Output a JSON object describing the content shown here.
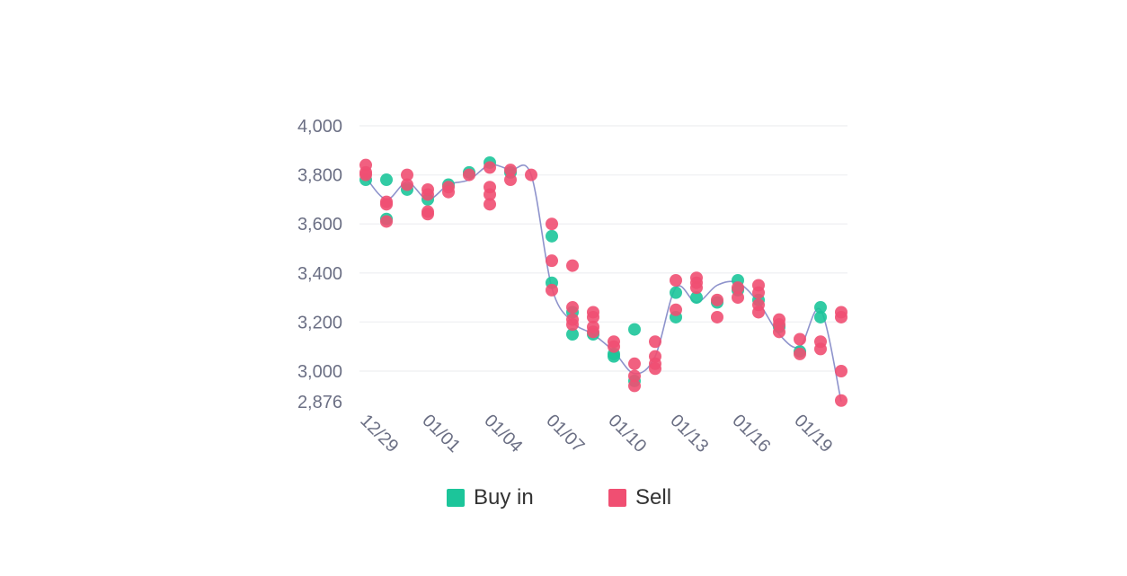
{
  "chart_data": {
    "type": "scatter",
    "title": "",
    "xlabel": "",
    "ylabel": "",
    "ylim": [
      2876,
      4000
    ],
    "y_ticks": [
      "4,000",
      "3,800",
      "3,600",
      "3,400",
      "3,200",
      "3,000",
      "2,876"
    ],
    "y_tick_values": [
      4000,
      3800,
      3600,
      3400,
      3200,
      3000,
      2876
    ],
    "x_ticks": [
      "12/29",
      "01/01",
      "01/04",
      "01/07",
      "01/10",
      "01/13",
      "01/16",
      "01/19"
    ],
    "x_tick_values": [
      "2022-12-29",
      "2023-01-01",
      "2023-01-04",
      "2023-01-07",
      "2023-01-10",
      "2023-01-13",
      "2023-01-16",
      "2023-01-19"
    ],
    "xlim": [
      "2022-12-29",
      "2023-01-20"
    ],
    "grid": true,
    "legend_position": "bottom",
    "colors": {
      "buy": "#1cc59a",
      "sell": "#f04f72",
      "line": "#8e93cc"
    },
    "line": [
      [
        "2022-12-29",
        3790
      ],
      [
        "2022-12-30",
        3700
      ],
      [
        "2022-12-31",
        3770
      ],
      [
        "2023-01-01",
        3700
      ],
      [
        "2023-01-02",
        3760
      ],
      [
        "2023-01-03",
        3780
      ],
      [
        "2023-01-04",
        3840
      ],
      [
        "2023-01-05",
        3820
      ],
      [
        "2023-01-06",
        3800
      ],
      [
        "2023-01-07",
        3340
      ],
      [
        "2023-01-08",
        3200
      ],
      [
        "2023-01-09",
        3150
      ],
      [
        "2023-01-10",
        3080
      ],
      [
        "2023-01-11",
        2990
      ],
      [
        "2023-01-12",
        3060
      ],
      [
        "2023-01-13",
        3340
      ],
      [
        "2023-01-14",
        3280
      ],
      [
        "2023-01-15",
        3350
      ],
      [
        "2023-01-16",
        3360
      ],
      [
        "2023-01-17",
        3280
      ],
      [
        "2023-01-18",
        3150
      ],
      [
        "2023-01-19",
        3100
      ],
      [
        "2023-01-20",
        3250
      ],
      [
        "2023-01-21",
        2876
      ]
    ],
    "series": [
      {
        "name": "Buy in",
        "points": [
          [
            "2022-12-29",
            3780
          ],
          [
            "2022-12-30",
            3620
          ],
          [
            "2022-12-30",
            3780
          ],
          [
            "2022-12-31",
            3740
          ],
          [
            "2023-01-01",
            3700
          ],
          [
            "2023-01-02",
            3760
          ],
          [
            "2023-01-03",
            3810
          ],
          [
            "2023-01-04",
            3850
          ],
          [
            "2023-01-05",
            3810
          ],
          [
            "2023-01-07",
            3550
          ],
          [
            "2023-01-07",
            3360
          ],
          [
            "2023-01-08",
            3150
          ],
          [
            "2023-01-08",
            3240
          ],
          [
            "2023-01-09",
            3150
          ],
          [
            "2023-01-10",
            3060
          ],
          [
            "2023-01-10",
            3070
          ],
          [
            "2023-01-11",
            3170
          ],
          [
            "2023-01-11",
            2960
          ],
          [
            "2023-01-13",
            3320
          ],
          [
            "2023-01-13",
            3220
          ],
          [
            "2023-01-14",
            3300
          ],
          [
            "2023-01-15",
            3280
          ],
          [
            "2023-01-16",
            3370
          ],
          [
            "2023-01-16",
            3330
          ],
          [
            "2023-01-17",
            3290
          ],
          [
            "2023-01-18",
            3180
          ],
          [
            "2023-01-19",
            3080
          ],
          [
            "2023-01-20",
            3220
          ],
          [
            "2023-01-20",
            3260
          ]
        ]
      },
      {
        "name": "Sell",
        "points": [
          [
            "2022-12-29",
            3840
          ],
          [
            "2022-12-29",
            3810
          ],
          [
            "2022-12-29",
            3800
          ],
          [
            "2022-12-30",
            3690
          ],
          [
            "2022-12-30",
            3610
          ],
          [
            "2022-12-30",
            3680
          ],
          [
            "2022-12-31",
            3800
          ],
          [
            "2022-12-31",
            3760
          ],
          [
            "2023-01-01",
            3740
          ],
          [
            "2023-01-01",
            3720
          ],
          [
            "2023-01-01",
            3650
          ],
          [
            "2023-01-01",
            3640
          ],
          [
            "2023-01-02",
            3750
          ],
          [
            "2023-01-02",
            3730
          ],
          [
            "2023-01-03",
            3800
          ],
          [
            "2023-01-04",
            3830
          ],
          [
            "2023-01-04",
            3750
          ],
          [
            "2023-01-04",
            3720
          ],
          [
            "2023-01-04",
            3680
          ],
          [
            "2023-01-05",
            3820
          ],
          [
            "2023-01-05",
            3780
          ],
          [
            "2023-01-06",
            3800
          ],
          [
            "2023-01-07",
            3600
          ],
          [
            "2023-01-07",
            3450
          ],
          [
            "2023-01-07",
            3330
          ],
          [
            "2023-01-08",
            3430
          ],
          [
            "2023-01-08",
            3260
          ],
          [
            "2023-01-08",
            3210
          ],
          [
            "2023-01-08",
            3190
          ],
          [
            "2023-01-09",
            3240
          ],
          [
            "2023-01-09",
            3220
          ],
          [
            "2023-01-09",
            3180
          ],
          [
            "2023-01-09",
            3160
          ],
          [
            "2023-01-10",
            3120
          ],
          [
            "2023-01-10",
            3100
          ],
          [
            "2023-01-11",
            3030
          ],
          [
            "2023-01-11",
            2980
          ],
          [
            "2023-01-11",
            2940
          ],
          [
            "2023-01-12",
            3120
          ],
          [
            "2023-01-12",
            3060
          ],
          [
            "2023-01-12",
            3030
          ],
          [
            "2023-01-12",
            3010
          ],
          [
            "2023-01-13",
            3370
          ],
          [
            "2023-01-13",
            3250
          ],
          [
            "2023-01-14",
            3380
          ],
          [
            "2023-01-14",
            3360
          ],
          [
            "2023-01-14",
            3340
          ],
          [
            "2023-01-15",
            3290
          ],
          [
            "2023-01-15",
            3220
          ],
          [
            "2023-01-16",
            3340
          ],
          [
            "2023-01-16",
            3300
          ],
          [
            "2023-01-17",
            3350
          ],
          [
            "2023-01-17",
            3320
          ],
          [
            "2023-01-17",
            3270
          ],
          [
            "2023-01-17",
            3240
          ],
          [
            "2023-01-18",
            3210
          ],
          [
            "2023-01-18",
            3190
          ],
          [
            "2023-01-18",
            3160
          ],
          [
            "2023-01-19",
            3130
          ],
          [
            "2023-01-19",
            3070
          ],
          [
            "2023-01-20",
            3120
          ],
          [
            "2023-01-20",
            3090
          ],
          [
            "2023-01-21",
            3240
          ],
          [
            "2023-01-21",
            3220
          ],
          [
            "2023-01-21",
            3000
          ],
          [
            "2023-01-21",
            2880
          ]
        ]
      }
    ]
  },
  "legend": {
    "buy_label": "Buy in",
    "sell_label": "Sell"
  }
}
